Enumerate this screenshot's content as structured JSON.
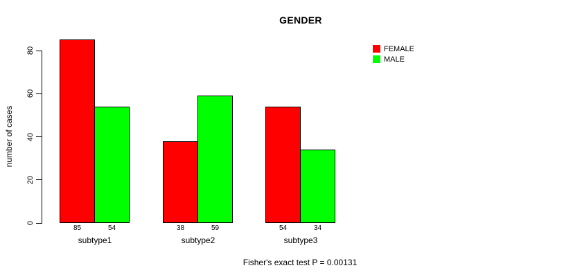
{
  "title": "GENDER",
  "footer_note": "Fisher's exact test P = 0.00131",
  "colors": {
    "female": "#ff0000",
    "male": "#00ff00",
    "axis": "#000000",
    "background": "#ffffff"
  },
  "chart_data": {
    "type": "bar",
    "title": "GENDER",
    "xlabel": "",
    "ylabel": "number of cases",
    "categories": [
      "subtype1",
      "subtype2",
      "subtype3"
    ],
    "series": [
      {
        "name": "FEMALE",
        "color": "#ff0000",
        "values": [
          85,
          38,
          54
        ]
      },
      {
        "name": "MALE",
        "color": "#00ff00",
        "values": [
          54,
          59,
          34
        ]
      }
    ],
    "bar_value_labels": [
      [
        "85",
        "54"
      ],
      [
        "38",
        "59"
      ],
      [
        "54",
        "34"
      ]
    ],
    "yticks": [
      0,
      20,
      40,
      60,
      80
    ],
    "ylim": [
      0,
      80
    ],
    "grid": false,
    "legend_position": "top-right",
    "annotation": "Fisher's exact test P = 0.00131"
  }
}
